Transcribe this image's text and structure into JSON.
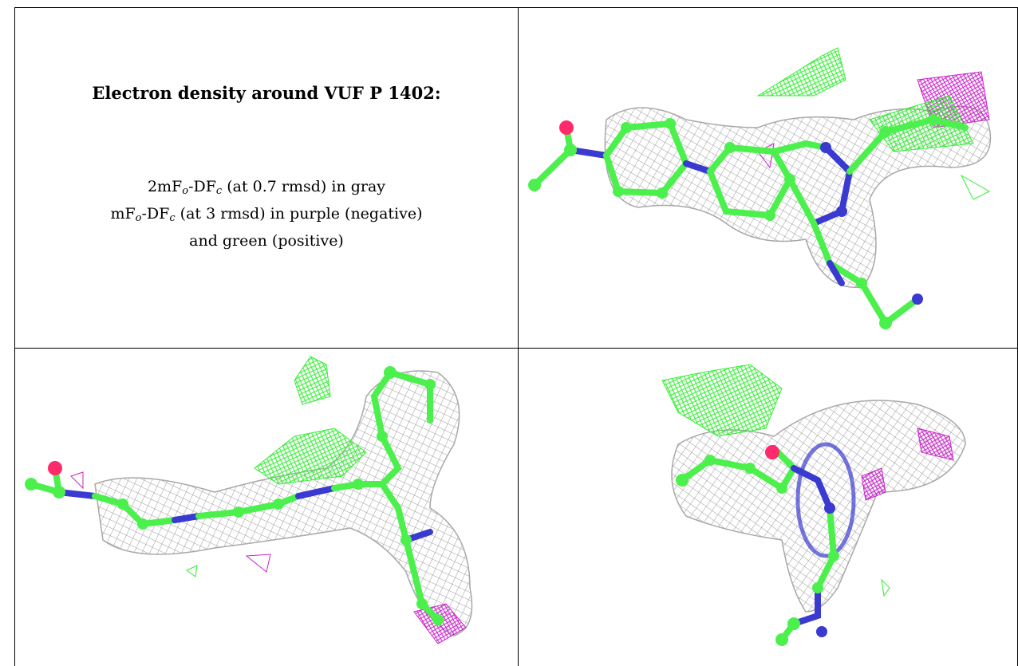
{
  "caption": {
    "title": "Electron density around VUF P 1402:",
    "line1": {
      "a": "2mF",
      "o": "o",
      "b": "-DF",
      "c": "c",
      "rest": " (at 0.7 rmsd) in gray"
    },
    "line2": {
      "a": "mF",
      "o": "o",
      "b": "-DF",
      "c": "c",
      "rest": " (at 3 rmsd) in purple (negative)"
    },
    "line3": "and green (positive)"
  },
  "colors": {
    "carbon": "#4cf04c",
    "nitrogen": "#3a3ad0",
    "oxygen": "#ff2a6a",
    "mesh_gray": "#9a9a9a",
    "mesh_green": "#33ee33",
    "mesh_purple": "#cc22cc",
    "grid_line": "#000000"
  },
  "panels": [
    {
      "name": "view-top-right",
      "icon": "electron-density-mesh-icon"
    },
    {
      "name": "view-bottom-left",
      "icon": "electron-density-mesh-icon"
    },
    {
      "name": "view-bottom-right",
      "icon": "electron-density-mesh-icon"
    }
  ]
}
